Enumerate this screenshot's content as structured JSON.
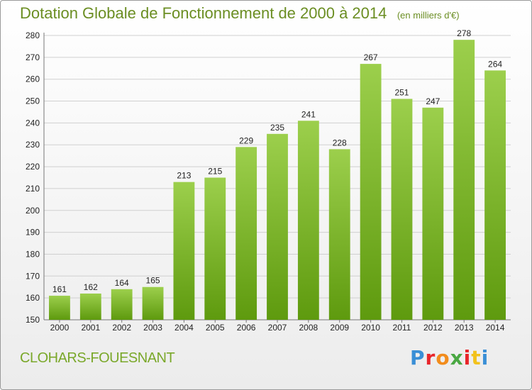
{
  "header": {
    "title": "Dotation Globale de Fonctionnement de 2000 à 2014",
    "unit": "(en milliers d'€)"
  },
  "footer": {
    "commune": "CLOHARS-FOUESNANT",
    "logo": "Proxiti"
  },
  "colors": {
    "bar_top": "#9ccf4c",
    "bar_bottom": "#5e9a0e",
    "title": "#6b8e23",
    "grid": "#d0d0d0"
  },
  "chart_data": {
    "type": "bar",
    "title": "Dotation Globale de Fonctionnement de 2000 à 2014",
    "xlabel": "",
    "ylabel": "",
    "categories": [
      "2000",
      "2001",
      "2002",
      "2003",
      "2004",
      "2005",
      "2006",
      "2007",
      "2008",
      "2009",
      "2010",
      "2011",
      "2012",
      "2013",
      "2014"
    ],
    "values": [
      161,
      162,
      164,
      165,
      213,
      215,
      229,
      235,
      241,
      228,
      267,
      251,
      247,
      278,
      264
    ],
    "ylim": [
      150,
      280
    ],
    "yticks": [
      150,
      160,
      170,
      180,
      190,
      200,
      210,
      220,
      230,
      240,
      250,
      260,
      270,
      280
    ],
    "grid": true,
    "data_labels": true
  }
}
